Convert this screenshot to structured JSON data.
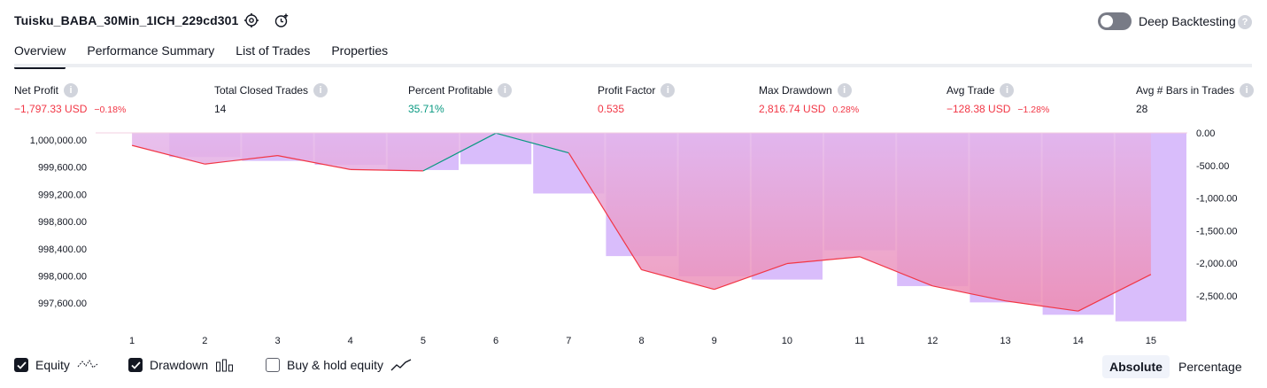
{
  "header": {
    "strategy_name": "Tuisku_BABA_30Min_1ICH_229cd301",
    "deep_backtesting_label": "Deep Backtesting",
    "deep_backtesting_enabled": false
  },
  "tabs": [
    {
      "label": "Overview",
      "active": true
    },
    {
      "label": "Performance Summary",
      "active": false
    },
    {
      "label": "List of Trades",
      "active": false
    },
    {
      "label": "Properties",
      "active": false
    }
  ],
  "metrics": [
    {
      "label": "Net Profit",
      "value": "−1,797.33 USD",
      "pct": "−0.18%",
      "tone": "neg"
    },
    {
      "label": "Total Closed Trades",
      "value": "14",
      "pct": "",
      "tone": "neutral"
    },
    {
      "label": "Percent Profitable",
      "value": "35.71%",
      "pct": "",
      "tone": "pos"
    },
    {
      "label": "Profit Factor",
      "value": "0.535",
      "pct": "",
      "tone": "neg"
    },
    {
      "label": "Max Drawdown",
      "value": "2,816.74 USD",
      "pct": "0.28%",
      "tone": "neg"
    },
    {
      "label": "Avg Trade",
      "value": "−128.38 USD",
      "pct": "−1.28%",
      "tone": "neg"
    },
    {
      "label": "Avg # Bars in Trades",
      "value": "28",
      "pct": "",
      "tone": "neutral"
    }
  ],
  "chart_data": {
    "type": "line",
    "x": [
      1,
      2,
      3,
      4,
      5,
      6,
      7,
      8,
      9,
      10,
      11,
      12,
      13,
      14,
      15
    ],
    "left_axis_ticks": [
      "1,000,000.00",
      "999,600.00",
      "999,200.00",
      "998,800.00",
      "998,400.00",
      "998,000.00",
      "997,600.00"
    ],
    "right_axis_ticks": [
      "0.00",
      "-500.00",
      "-1,000.00",
      "-1,500.00",
      "-2,000.00",
      "-2,500.00"
    ],
    "left_ylim": [
      997,
      400,
      1000100
    ],
    "right_ylim": [
      -2900,
      20
    ],
    "series": [
      {
        "name": "Equity",
        "axis": "left",
        "values": [
          999920,
          999645,
          999770,
          999565,
          999545,
          1000100,
          999810,
          998090,
          997800,
          998180,
          998280,
          997850,
          997630,
          997480,
          998020
        ]
      },
      {
        "name": "Drawdown",
        "axis": "right",
        "values": [
          -5,
          -370,
          -430,
          -490,
          -570,
          -480,
          -930,
          -1890,
          -2200,
          -2250,
          -1800,
          -2350,
          -2600,
          -2790,
          -2890
        ]
      }
    ],
    "colors": {
      "equity_line": "#f23645",
      "equity_up": "#089981",
      "drawdown_bar": "#d9bdfb",
      "area_top": "#e3b5ec",
      "area_bottom": "#ee8bb0"
    }
  },
  "legend": {
    "items": [
      {
        "label": "Equity",
        "checked": true,
        "icon": "equity-line-icon"
      },
      {
        "label": "Drawdown",
        "checked": true,
        "icon": "drawdown-bars-icon"
      },
      {
        "label": "Buy & hold equity",
        "checked": false,
        "icon": "buy-hold-line-icon"
      }
    ],
    "mode_absolute": "Absolute",
    "mode_percentage": "Percentage"
  }
}
